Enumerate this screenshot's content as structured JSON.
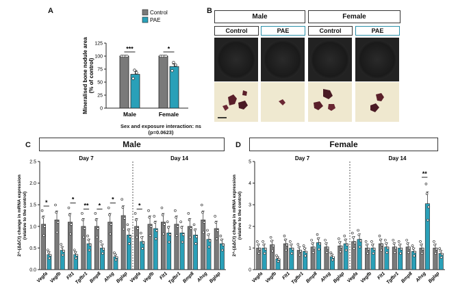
{
  "panelA": {
    "letter": "A",
    "legend": [
      "Control",
      "PAE"
    ],
    "ylabel": [
      "Mineralised bone nodule area",
      "(% of control)"
    ],
    "caption_line1": "Sex and exposure interaction: ns",
    "caption_line2": "(p=0.0623)",
    "chart_data": {
      "type": "bar",
      "title": "",
      "categories": [
        "Male",
        "Female"
      ],
      "series": [
        {
          "name": "Control",
          "values": [
            100,
            100
          ]
        },
        {
          "name": "PAE",
          "values": [
            65,
            80
          ]
        }
      ],
      "errors": {
        "Control": [
          0,
          0
        ],
        "PAE": [
          7,
          5
        ]
      },
      "ylim": [
        0,
        125
      ],
      "yticks": [
        0,
        25,
        50,
        75,
        100,
        125
      ],
      "significance": [
        "***",
        "*"
      ],
      "xlabel": "",
      "ylabel": "Mineralised bone nodule area (% of control)"
    }
  },
  "panelB": {
    "letter": "B",
    "groups": [
      "Male",
      "Female"
    ],
    "columns": [
      "Control",
      "PAE",
      "Control",
      "PAE"
    ]
  },
  "panelC": {
    "letter": "C",
    "title": "Male",
    "day7": "Day 7",
    "day14": "Day 14",
    "ylabel": [
      "2^-(ΔΔCt) change in mRNA expression",
      "(relative to the control)"
    ],
    "chart_data": {
      "type": "bar",
      "title": "Male",
      "categories": [
        "Vegfa",
        "Vegfb",
        "Flt1",
        "Tgfbr1",
        "Bmp8",
        "Ahsg",
        "Bglap"
      ],
      "series": [
        {
          "name": "Day 7 Control",
          "values": [
            1.05,
            1.15,
            1.1,
            1.0,
            1.0,
            1.1,
            1.25
          ]
        },
        {
          "name": "Day 7 PAE",
          "values": [
            0.35,
            0.45,
            0.35,
            0.6,
            0.5,
            0.3,
            0.8
          ]
        },
        {
          "name": "Day 14 Control",
          "values": [
            1.0,
            1.05,
            1.1,
            1.05,
            1.0,
            1.15,
            0.95
          ]
        },
        {
          "name": "Day 14 PAE",
          "values": [
            0.65,
            0.95,
            0.85,
            0.85,
            0.8,
            0.7,
            0.6
          ]
        }
      ],
      "ylim": [
        0,
        2.5
      ],
      "yticks": [
        0.0,
        0.5,
        1.0,
        1.5,
        2.0,
        2.5
      ],
      "significance_day7": [
        "*",
        "",
        "*",
        "**",
        "*",
        "*",
        ""
      ],
      "significance_day14": [
        "*",
        "",
        "",
        "",
        "",
        "",
        ""
      ],
      "xlabel": "",
      "ylabel": "2^-(ΔΔCt) change in mRNA expression (relative to the control)"
    }
  },
  "panelD": {
    "letter": "D",
    "title": "Female",
    "day7": "Day 7",
    "day14": "Day 14",
    "ylabel": [
      "2^-(ΔΔCt) change in mRNA expression",
      "(relative to the control)"
    ],
    "chart_data": {
      "type": "bar",
      "title": "Female",
      "categories": [
        "Vegfa",
        "Vegfb",
        "Flt1",
        "Tgfbr1",
        "Bmp8",
        "Ahsg",
        "Bglap"
      ],
      "series": [
        {
          "name": "Day 7 Control",
          "values": [
            1.0,
            1.15,
            1.2,
            0.9,
            1.05,
            1.05,
            1.1
          ]
        },
        {
          "name": "Day 7 PAE",
          "values": [
            1.0,
            0.5,
            1.0,
            0.85,
            1.25,
            0.6,
            1.2
          ]
        },
        {
          "name": "Day 14 Control",
          "values": [
            1.3,
            1.0,
            1.2,
            1.05,
            1.05,
            1.0,
            1.0
          ]
        },
        {
          "name": "Day 14 PAE",
          "values": [
            1.4,
            1.0,
            1.05,
            1.0,
            0.85,
            3.05,
            0.75
          ]
        }
      ],
      "ylim": [
        0,
        5
      ],
      "yticks": [
        0,
        1,
        2,
        3,
        4,
        5
      ],
      "significance_day7": [
        "",
        "",
        "",
        "",
        "",
        "",
        ""
      ],
      "significance_day14": [
        "",
        "",
        "",
        "",
        "",
        "**",
        ""
      ],
      "xlabel": "",
      "ylabel": "2^-(ΔΔCt) change in mRNA expression (relative to the control)"
    }
  },
  "colors": {
    "control": "#7a7a7a",
    "pae": "#2aa0b8",
    "stroke": "#222222"
  }
}
